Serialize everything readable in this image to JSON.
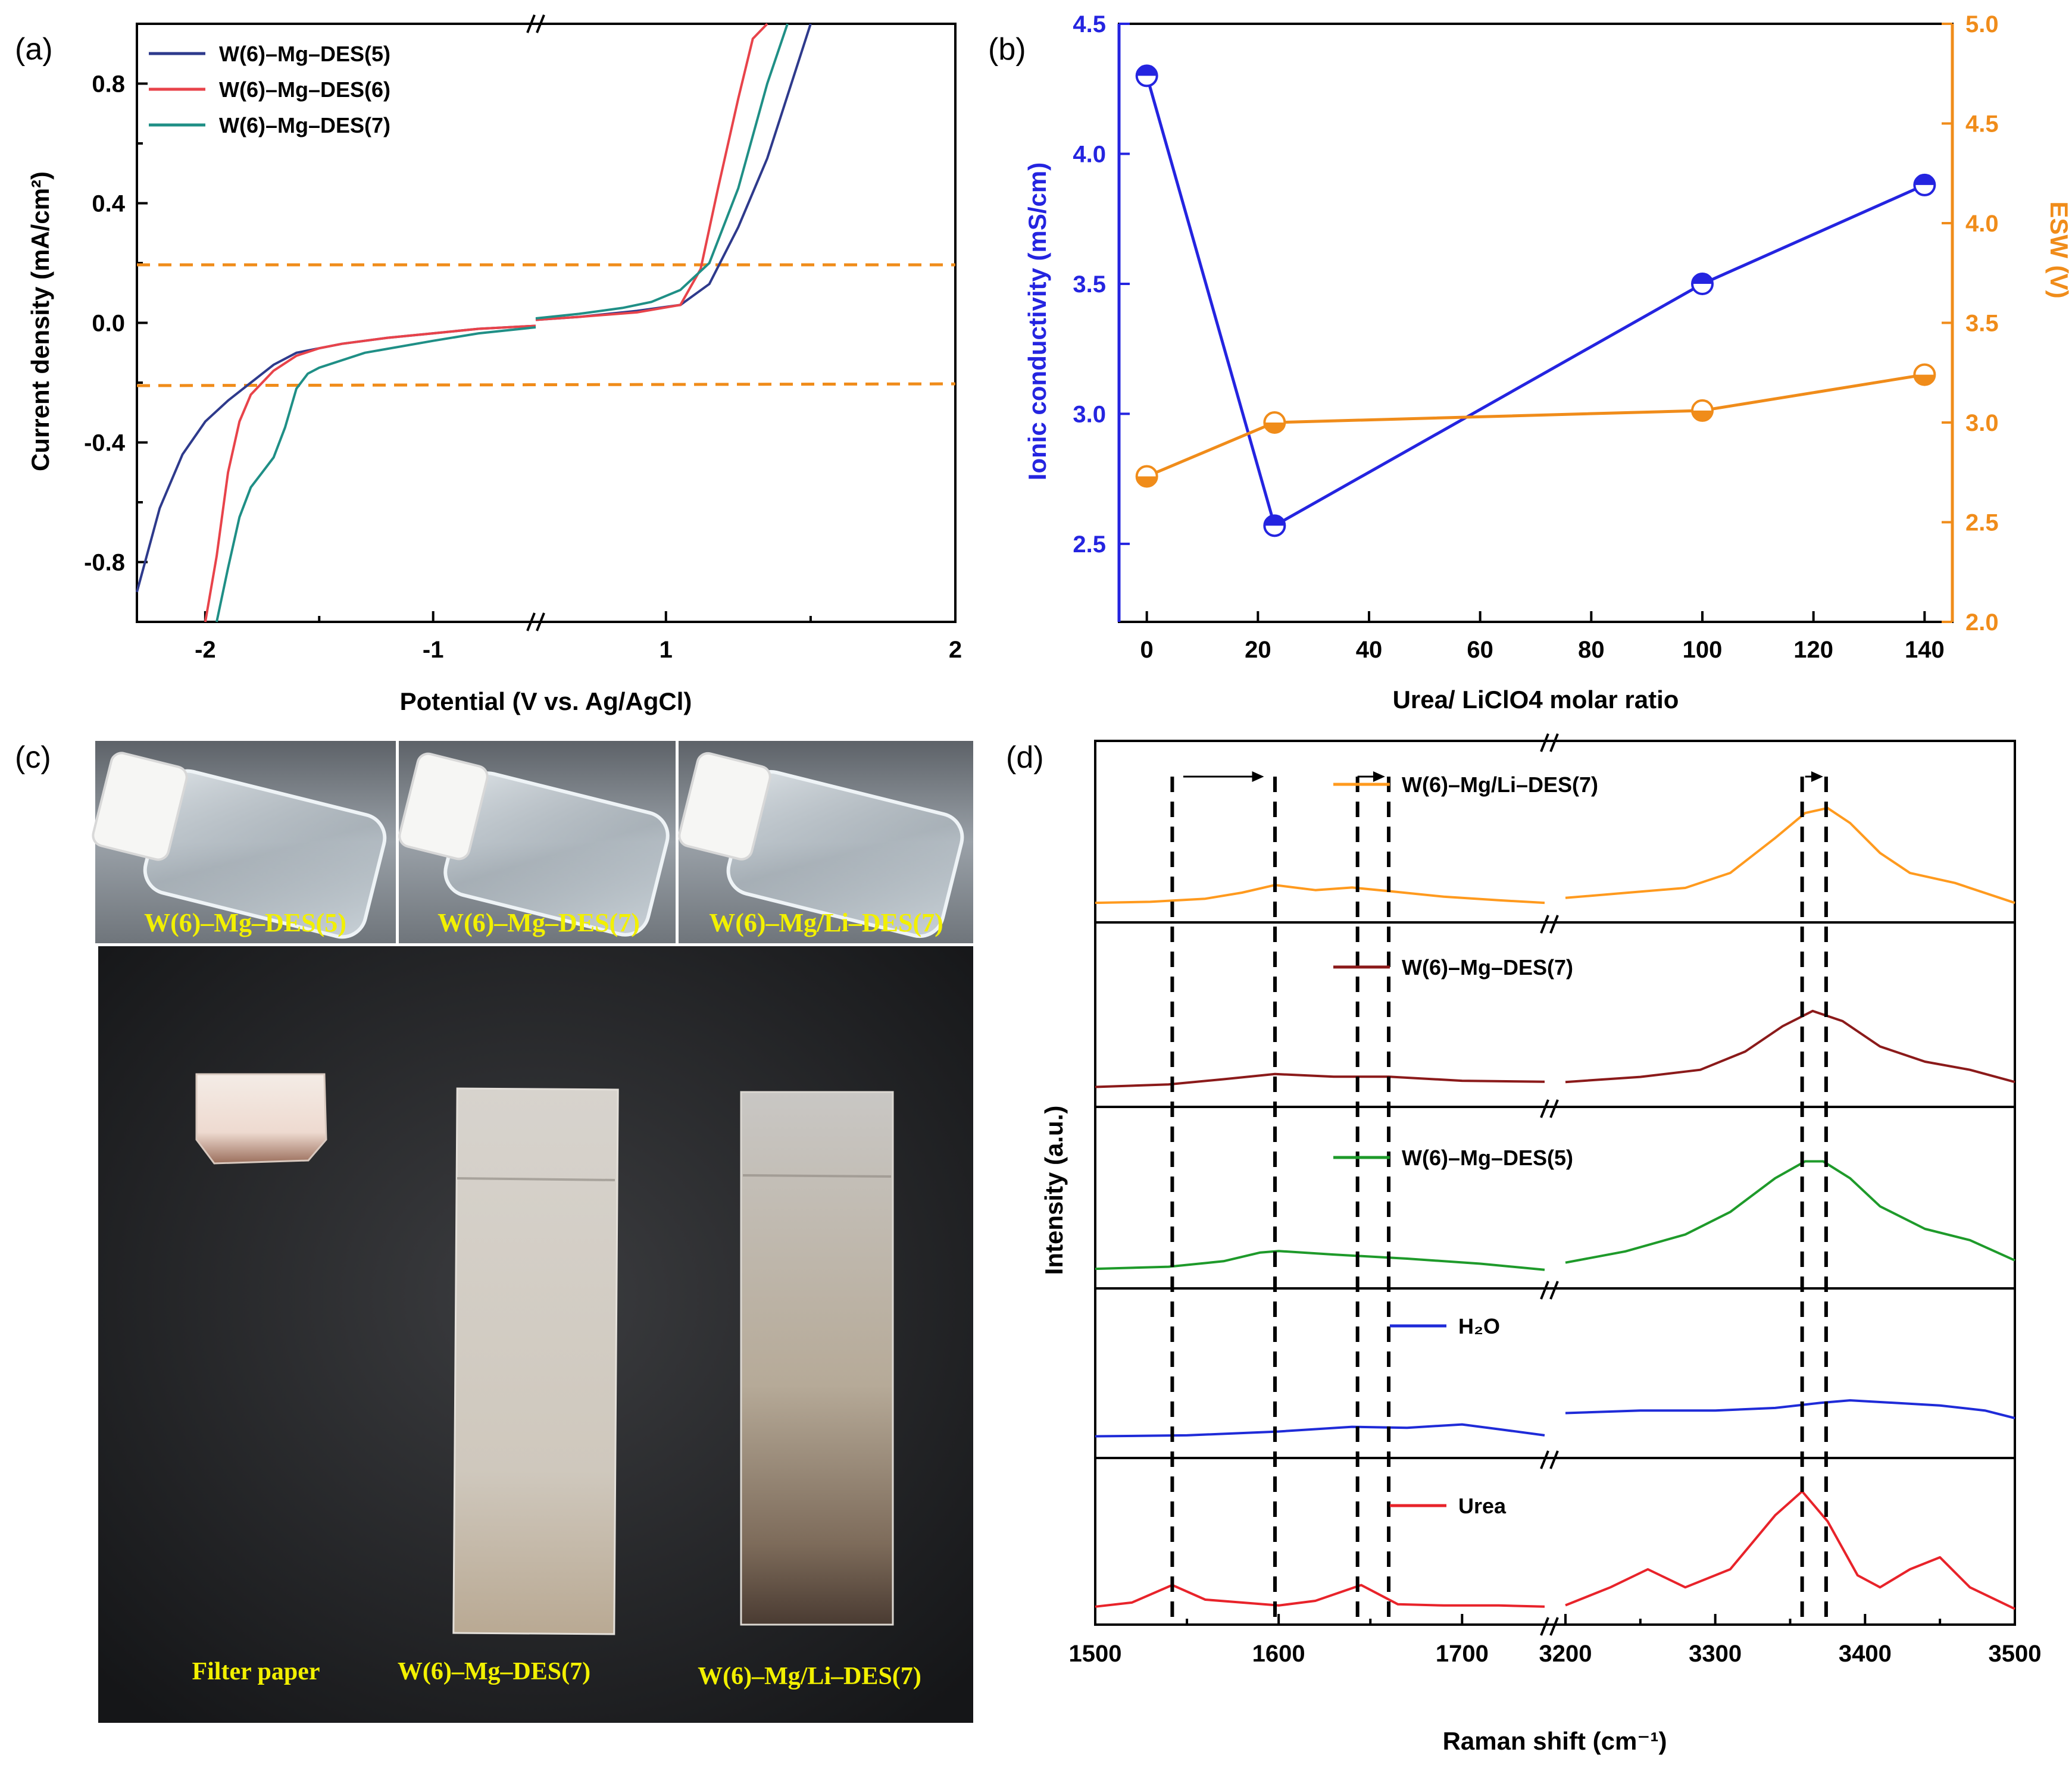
{
  "panel_letters": [
    "(a)",
    "(b)",
    "(c)",
    "(d)"
  ],
  "colors": {
    "des5_blue": "#2e3a8c",
    "des6_red": "#e8434a",
    "des7_teal": "#1f8f86",
    "conductivity_blue": "#2424e0",
    "esw_orange": "#f08c1a",
    "mgli_orange": "#ff9a1e",
    "mg7_darkred": "#8b1a1a",
    "mg5_green": "#1e9a2a",
    "h2o_blue": "#1f2bd8",
    "urea_red": "#e8232a",
    "caption_yellow": "#f2f000"
  },
  "chart_data": [
    {
      "panel": "(a)",
      "type": "line",
      "xlabel": "Potential (V vs. Ag/AgCl)",
      "ylabel": "Current density (mA/cm²)",
      "x_broken_axis": true,
      "x_ticks": [
        "-2",
        "-1",
        "1",
        "2"
      ],
      "y_ticks": [
        "-0.8",
        "-0.4",
        "0.0",
        "0.4",
        "0.8"
      ],
      "ylim": [
        -1.0,
        1.0
      ],
      "legend_position": "top-left",
      "threshold_lines_y": [
        0.2,
        -0.2
      ],
      "series": [
        {
          "name": "W(6)–Mg–DES(5)",
          "color": "#2e3a8c",
          "x": [
            -2.3,
            -2.2,
            -2.1,
            -2.0,
            -1.9,
            -1.8,
            -1.7,
            -1.6,
            -1.5,
            -1.4,
            -1.2,
            -1.0,
            -0.8,
            -0.55,
            0.55,
            0.7,
            0.9,
            1.05,
            1.15,
            1.25,
            1.35,
            1.45,
            1.5
          ],
          "y": [
            -0.9,
            -0.62,
            -0.44,
            -0.33,
            -0.26,
            -0.2,
            -0.14,
            -0.1,
            -0.085,
            -0.07,
            -0.05,
            -0.035,
            -0.02,
            -0.01,
            0.01,
            0.02,
            0.04,
            0.06,
            0.13,
            0.32,
            0.55,
            0.85,
            1.0
          ]
        },
        {
          "name": "W(6)–Mg–DES(6)",
          "color": "#e8434a",
          "x": [
            -2.0,
            -1.95,
            -1.9,
            -1.85,
            -1.8,
            -1.7,
            -1.6,
            -1.5,
            -1.4,
            -1.2,
            -1.0,
            -0.8,
            -0.55,
            0.55,
            0.7,
            0.9,
            1.05,
            1.12,
            1.18,
            1.25,
            1.3,
            1.35
          ],
          "y": [
            -1.0,
            -0.78,
            -0.5,
            -0.33,
            -0.24,
            -0.16,
            -0.11,
            -0.085,
            -0.07,
            -0.05,
            -0.035,
            -0.02,
            -0.01,
            0.01,
            0.02,
            0.035,
            0.06,
            0.18,
            0.45,
            0.75,
            0.95,
            1.0
          ]
        },
        {
          "name": "W(6)–Mg–DES(7)",
          "color": "#1f8f86",
          "x": [
            -1.95,
            -1.9,
            -1.85,
            -1.8,
            -1.75,
            -1.7,
            -1.65,
            -1.6,
            -1.55,
            -1.5,
            -1.3,
            -1.0,
            -0.8,
            -0.55,
            0.55,
            0.7,
            0.85,
            0.95,
            1.05,
            1.15,
            1.25,
            1.35,
            1.42
          ],
          "y": [
            -1.0,
            -0.82,
            -0.65,
            -0.55,
            -0.5,
            -0.45,
            -0.35,
            -0.22,
            -0.17,
            -0.15,
            -0.1,
            -0.06,
            -0.035,
            -0.015,
            0.015,
            0.03,
            0.05,
            0.07,
            0.11,
            0.2,
            0.45,
            0.8,
            1.0
          ]
        }
      ]
    },
    {
      "panel": "(b)",
      "type": "line",
      "xlabel": "Urea/ LiClO4 molar ratio",
      "ylabel_left": "Ionic conductivity (mS/cm)",
      "ylabel_right": "ESW (V)",
      "xlim": [
        -5,
        145
      ],
      "ylim_left": [
        2.2,
        4.5
      ],
      "ylim_right": [
        2.0,
        5.0
      ],
      "x_ticks": [
        "0",
        "20",
        "40",
        "60",
        "80",
        "100",
        "120",
        "140"
      ],
      "y_left_ticks": [
        "2.5",
        "3.0",
        "3.5",
        "4.0",
        "4.5"
      ],
      "y_right_ticks": [
        "2.0",
        "2.5",
        "3.0",
        "3.5",
        "4.0",
        "4.5",
        "5.0"
      ],
      "series": [
        {
          "name": "Ionic conductivity",
          "axis": "left",
          "color": "#2424e0",
          "x": [
            0,
            23,
            100,
            140
          ],
          "y": [
            4.3,
            2.57,
            3.5,
            3.88
          ]
        },
        {
          "name": "ESW",
          "axis": "right",
          "color": "#f08c1a",
          "x": [
            0,
            23,
            100,
            140
          ],
          "y": [
            2.73,
            3.0,
            3.06,
            3.24
          ]
        }
      ]
    },
    {
      "panel": "(d)",
      "type": "line",
      "xlabel": "Raman shift (cm⁻¹)",
      "ylabel": "Intensity (a.u.)",
      "x_broken_axis": true,
      "x_ticks": [
        "1500",
        "1600",
        "1700",
        "3200",
        "3300",
        "3400",
        "3500"
      ],
      "dashed_markers_x": [
        1542,
        1598,
        1643,
        1660,
        3358,
        3374
      ],
      "arrows": [
        {
          "from": 1548,
          "to": 1592
        },
        {
          "from": 1643,
          "to": 1658
        },
        {
          "from": 3360,
          "to": 3372
        }
      ],
      "series": [
        {
          "name": "W(6)–Mg/Li–DES(7)",
          "color": "#ff9a1e",
          "left_x": [
            1500,
            1530,
            1560,
            1580,
            1598,
            1620,
            1640,
            1660,
            1690,
            1720,
            1745
          ],
          "left_y": [
            0.1,
            0.12,
            0.18,
            0.3,
            0.45,
            0.35,
            0.4,
            0.33,
            0.22,
            0.15,
            0.1
          ],
          "right_x": [
            3200,
            3240,
            3280,
            3310,
            3340,
            3360,
            3375,
            3390,
            3410,
            3430,
            3460,
            3490,
            3500
          ],
          "right_y": [
            0.1,
            0.15,
            0.2,
            0.35,
            0.7,
            0.95,
            1.0,
            0.85,
            0.55,
            0.35,
            0.25,
            0.1,
            0.05
          ]
        },
        {
          "name": "W(6)–Mg–DES(7)",
          "color": "#8b1a1a",
          "left_x": [
            1500,
            1540,
            1570,
            1598,
            1630,
            1660,
            1700,
            1745
          ],
          "left_y": [
            0.1,
            0.15,
            0.25,
            0.35,
            0.3,
            0.3,
            0.22,
            0.2
          ],
          "right_x": [
            3200,
            3250,
            3290,
            3320,
            3345,
            3365,
            3385,
            3410,
            3440,
            3470,
            3500
          ],
          "right_y": [
            0.1,
            0.15,
            0.22,
            0.4,
            0.65,
            0.8,
            0.7,
            0.45,
            0.3,
            0.22,
            0.1
          ]
        },
        {
          "name": "W(6)–Mg–DES(5)",
          "color": "#1e9a2a",
          "left_x": [
            1500,
            1540,
            1570,
            1590,
            1600,
            1630,
            1670,
            1710,
            1745
          ],
          "left_y": [
            0.1,
            0.14,
            0.25,
            0.42,
            0.45,
            0.38,
            0.3,
            0.2,
            0.08
          ],
          "right_x": [
            3200,
            3240,
            3280,
            3310,
            3340,
            3360,
            3372,
            3390,
            3410,
            3440,
            3470,
            3500
          ],
          "right_y": [
            0.1,
            0.2,
            0.35,
            0.55,
            0.85,
            1.0,
            1.0,
            0.85,
            0.6,
            0.4,
            0.3,
            0.12
          ]
        },
        {
          "name": "H₂O",
          "color": "#1f2bd8",
          "left_x": [
            1500,
            1550,
            1600,
            1640,
            1670,
            1700,
            1720,
            1745
          ],
          "left_y": [
            0.1,
            0.12,
            0.2,
            0.3,
            0.28,
            0.35,
            0.25,
            0.12
          ],
          "right_x": [
            3200,
            3250,
            3300,
            3340,
            3370,
            3390,
            3420,
            3450,
            3480,
            3500
          ],
          "right_y": [
            0.55,
            0.6,
            0.6,
            0.65,
            0.75,
            0.8,
            0.75,
            0.7,
            0.6,
            0.45
          ]
        },
        {
          "name": "Urea",
          "color": "#e8232a",
          "left_x": [
            1500,
            1520,
            1542,
            1560,
            1580,
            1600,
            1620,
            1645,
            1665,
            1690,
            1720,
            1745
          ],
          "left_y": [
            0.08,
            0.15,
            0.45,
            0.2,
            0.15,
            0.1,
            0.18,
            0.45,
            0.12,
            0.1,
            0.1,
            0.08
          ],
          "right_x": [
            3200,
            3230,
            3255,
            3280,
            3310,
            3340,
            3358,
            3375,
            3395,
            3410,
            3430,
            3450,
            3470,
            3500
          ],
          "right_y": [
            0.05,
            0.2,
            0.35,
            0.2,
            0.35,
            0.8,
            1.0,
            0.75,
            0.3,
            0.2,
            0.35,
            0.45,
            0.2,
            0.02
          ]
        }
      ]
    }
  ],
  "photos": {
    "vial_labels": [
      "W(6)–Mg–DES(5)",
      "W(6)–Mg–DES(7)",
      "W(6)–Mg/Li–DES(7)"
    ],
    "strip_labels": [
      "Filter paper",
      "W(6)–Mg–DES(7)",
      "W(6)–Mg/Li–DES(7)"
    ]
  }
}
